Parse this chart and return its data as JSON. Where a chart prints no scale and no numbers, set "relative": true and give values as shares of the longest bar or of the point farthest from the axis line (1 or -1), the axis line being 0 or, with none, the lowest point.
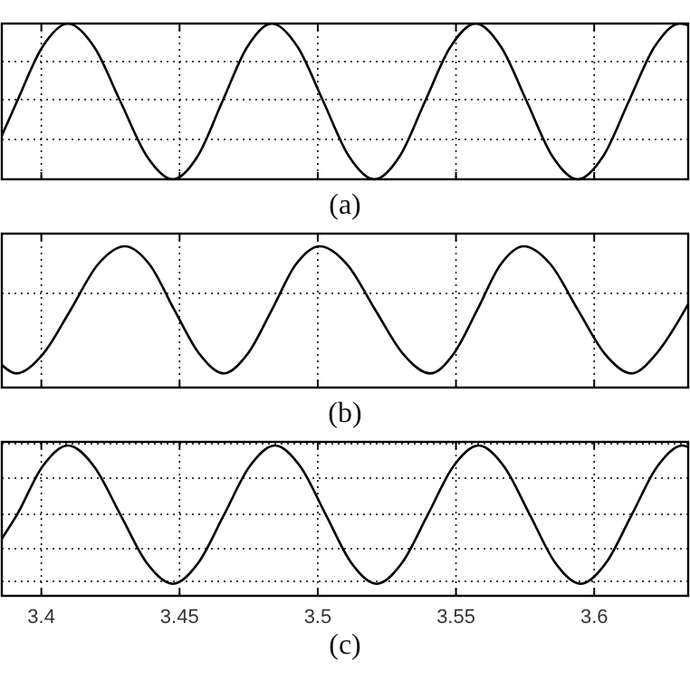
{
  "chart_data": [
    {
      "type": "line",
      "xlabel": "(a)",
      "relative": true,
      "grid": true,
      "tick_labels": false,
      "color": "#000000",
      "xlim": [
        3.3857,
        3.634
      ],
      "xticks": [
        {
          "value": 3.4,
          "label": null
        },
        {
          "value": 3.45,
          "label": null
        },
        {
          "value": 3.5,
          "label": null
        },
        {
          "value": 3.55,
          "label": null
        },
        {
          "value": 3.6,
          "label": null
        }
      ],
      "x": [
        3.3857,
        3.3912,
        3.4004,
        3.4096,
        3.4191,
        3.4286,
        3.4381,
        3.4476,
        3.4566,
        3.4655,
        3.4745,
        3.4834,
        3.4927,
        3.502,
        3.5112,
        3.5205,
        3.5297,
        3.5388,
        3.548,
        3.5571,
        3.5663,
        3.5756,
        3.5848,
        3.594,
        3.6033,
        3.6125,
        3.6218,
        3.631,
        3.634
      ],
      "values": [
        0.28,
        0.5,
        0.85,
        1,
        0.85,
        0.5,
        0.15,
        0,
        0.15,
        0.5,
        0.85,
        1,
        0.85,
        0.5,
        0.15,
        0,
        0.15,
        0.5,
        0.85,
        1,
        0.85,
        0.5,
        0.15,
        0,
        0.15,
        0.5,
        0.85,
        1,
        0.99
      ]
    },
    {
      "type": "line",
      "xlabel": "(b)",
      "relative": true,
      "grid": true,
      "tick_labels": false,
      "color": "#000000",
      "xlim": [
        3.3857,
        3.634
      ],
      "xticks": [
        {
          "value": 3.4,
          "label": null
        },
        {
          "value": 3.45,
          "label": null
        },
        {
          "value": 3.5,
          "label": null
        },
        {
          "value": 3.55,
          "label": null
        },
        {
          "value": 3.6,
          "label": null
        }
      ],
      "x": [
        3.3857,
        3.3909,
        3.4007,
        3.4106,
        3.4204,
        3.4302,
        3.4392,
        3.4481,
        3.4571,
        3.466,
        3.4747,
        3.4834,
        3.492,
        3.5007,
        3.5107,
        3.5208,
        3.5308,
        3.5408,
        3.5492,
        3.5577,
        3.5661,
        3.5745,
        3.5843,
        3.5941,
        3.6038,
        3.6136,
        3.6225,
        3.634
      ],
      "values": [
        0.16,
        0.1,
        0.24,
        0.55,
        0.87,
        1,
        0.87,
        0.55,
        0.24,
        0.1,
        0.24,
        0.55,
        0.87,
        1,
        0.87,
        0.55,
        0.24,
        0.1,
        0.24,
        0.55,
        0.87,
        1,
        0.87,
        0.55,
        0.24,
        0.1,
        0.24,
        0.59
      ]
    },
    {
      "type": "line",
      "xlabel": "(c)",
      "relative": true,
      "grid": true,
      "tick_labels": "x",
      "color": "#000000",
      "xlim": [
        3.3857,
        3.634
      ],
      "xticks": [
        3.4,
        3.45,
        3.5,
        3.55,
        3.6
      ],
      "x": [
        3.3857,
        3.3912,
        3.4004,
        3.4096,
        3.4191,
        3.4286,
        3.4381,
        3.4476,
        3.4568,
        3.4661,
        3.4753,
        3.4845,
        3.4937,
        3.5029,
        3.5121,
        3.5213,
        3.5305,
        3.5398,
        3.549,
        3.5582,
        3.5674,
        3.5767,
        3.5859,
        3.5951,
        3.6043,
        3.6136,
        3.6228,
        3.632,
        3.634
      ],
      "values": [
        0.38,
        0.54,
        0.86,
        1,
        0.86,
        0.54,
        0.22,
        0.08,
        0.22,
        0.54,
        0.86,
        1,
        0.86,
        0.54,
        0.22,
        0.08,
        0.22,
        0.54,
        0.86,
        1,
        0.86,
        0.54,
        0.22,
        0.08,
        0.22,
        0.54,
        0.86,
        1,
        0.99
      ]
    }
  ]
}
